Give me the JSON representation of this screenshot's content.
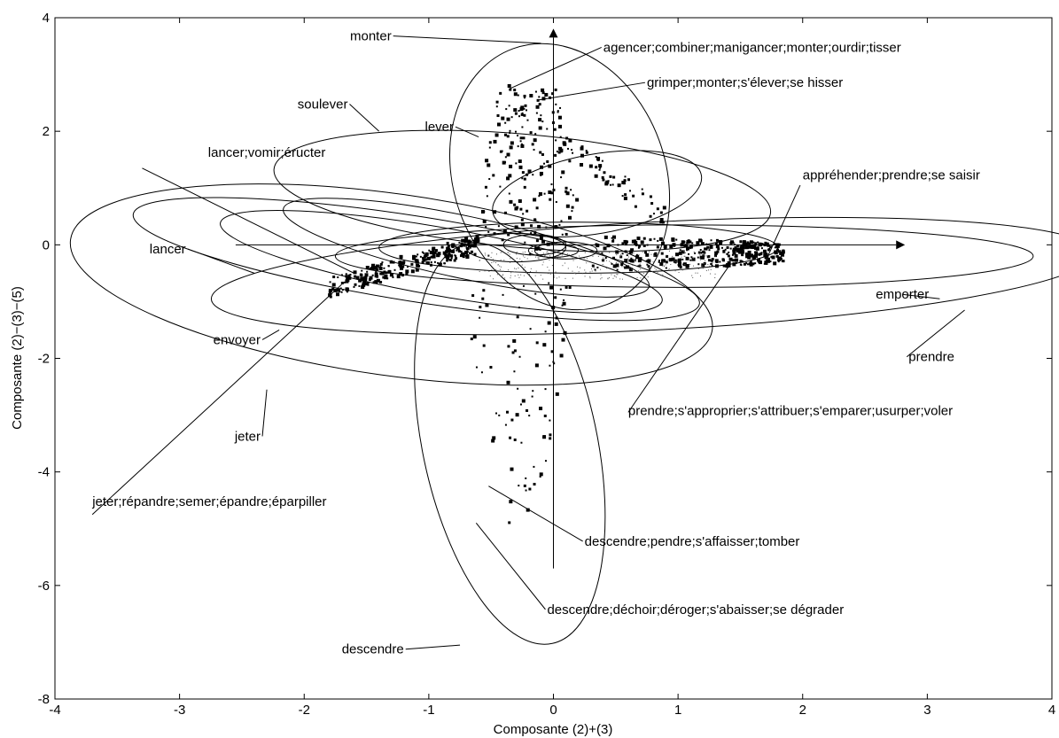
{
  "chart_data": {
    "type": "scatter",
    "xlabel": "Composante (2)+(3)",
    "ylabel": "Composante (2)−(3)−(5)",
    "xlim": [
      -4,
      4
    ],
    "ylim": [
      -8,
      4
    ],
    "grid": false,
    "xticks": [
      "-4",
      "-3",
      "-2",
      "-1",
      "0",
      "1",
      "2",
      "3",
      "4"
    ],
    "yticks": [
      "-8",
      "-6",
      "-4",
      "-2",
      "0",
      "2",
      "4"
    ],
    "axes_arrows": {
      "horizontal": {
        "from": [
          -2.55,
          0
        ],
        "to": [
          2.75,
          0
        ]
      },
      "vertical": {
        "from": [
          0,
          -5.7
        ],
        "to": [
          0,
          3.65
        ]
      }
    },
    "ellipses": [
      {
        "label": "monter",
        "cx": 0.05,
        "cy": 1.2,
        "rx": 0.85,
        "ry": 2.4,
        "angle_deg": -20
      },
      {
        "label": "soulever",
        "cx": -0.25,
        "cy": 0.95,
        "rx": 2.0,
        "ry": 1.0,
        "angle_deg": 5
      },
      {
        "label": "lever",
        "cx": 0.35,
        "cy": 0.9,
        "rx": 0.85,
        "ry": 0.7,
        "angle_deg": -10
      },
      {
        "label": "lancer;vomir;éructer",
        "cx": -0.7,
        "cy": -0.05,
        "rx": 1.5,
        "ry": 0.55,
        "angle_deg": 12
      },
      {
        "label": "lancer",
        "cx": -0.9,
        "cy": -0.3,
        "rx": 1.8,
        "ry": 0.6,
        "angle_deg": 10
      },
      {
        "label": "envoyer",
        "cx": -1.1,
        "cy": -0.25,
        "rx": 2.3,
        "ry": 0.75,
        "angle_deg": 9
      },
      {
        "label": "jeter",
        "cx": -1.3,
        "cy": -0.7,
        "rx": 2.6,
        "ry": 1.6,
        "angle_deg": 8
      },
      {
        "label": "prendre",
        "cx": 0.8,
        "cy": -0.55,
        "rx": 3.55,
        "ry": 0.95,
        "angle_deg": -3
      },
      {
        "label": "emporter",
        "cx": 1.05,
        "cy": -0.2,
        "rx": 2.8,
        "ry": 0.55,
        "angle_deg": 0
      },
      {
        "label": "appréhender;prendre;se saisir",
        "cx": 0.2,
        "cy": -0.05,
        "rx": 1.6,
        "ry": 0.45,
        "angle_deg": 0
      },
      {
        "label": "descendre",
        "cx": -0.35,
        "cy": -3.5,
        "rx": 0.7,
        "ry": 3.6,
        "angle_deg": -12
      },
      {
        "label": "descendre;pendre;s'affaisser;tomber",
        "cx": -0.3,
        "cy": -0.05,
        "rx": 0.4,
        "ry": 0.25,
        "angle_deg": 0
      },
      {
        "label": "grimper;monter;s'élever;se hisser",
        "cx": -0.15,
        "cy": 0.0,
        "rx": 0.25,
        "ry": 0.18,
        "angle_deg": 0
      },
      {
        "label": "agencer;combiner;manigancer;monter;ourdir;tisser",
        "cx": 0.0,
        "cy": -0.1,
        "rx": 0.2,
        "ry": 0.12,
        "angle_deg": 0
      },
      {
        "label": "prendre;s'approprier;s'attribuer;s'emparer;usurper;voler",
        "cx": 0.1,
        "cy": -0.1,
        "rx": 0.25,
        "ry": 0.15,
        "angle_deg": 0
      }
    ],
    "points_clusters": [
      {
        "name": "left-arm",
        "x_range": [
          -1.8,
          -0.6
        ],
        "y_range": [
          -0.75,
          0.15
        ],
        "count": 260,
        "trend": "rising"
      },
      {
        "name": "upper-arm",
        "x_range": [
          -0.6,
          0.2
        ],
        "y_range": [
          -0.2,
          2.8
        ],
        "count": 200,
        "trend": "vertical"
      },
      {
        "name": "right-arm",
        "x_range": [
          0.3,
          1.85
        ],
        "y_range": [
          -0.7,
          0.4
        ],
        "count": 360,
        "trend": "flat"
      },
      {
        "name": "lower-arm",
        "x_range": [
          -0.75,
          0.2
        ],
        "y_range": [
          -4.95,
          -0.6
        ],
        "count": 90,
        "trend": "vertical"
      },
      {
        "name": "upper-right-branch",
        "x_range": [
          0.0,
          0.9
        ],
        "y_range": [
          0.5,
          1.9
        ],
        "count": 60,
        "trend": "diagonal"
      }
    ],
    "annotations": [
      {
        "text": "monter",
        "x": -1.3,
        "y": 3.6,
        "anchor": "end",
        "target": [
          -0.1,
          3.55
        ]
      },
      {
        "text": "agencer;combiner;manigancer;monter;ourdir;tisser",
        "x": 0.4,
        "y": 3.4,
        "anchor": "start",
        "target": [
          -0.35,
          2.75
        ]
      },
      {
        "text": "grimper;monter;s'élever;se hisser",
        "x": 0.75,
        "y": 2.78,
        "anchor": "start",
        "target": [
          -0.12,
          2.55
        ]
      },
      {
        "text": "soulever",
        "x": -1.65,
        "y": 2.4,
        "anchor": "end",
        "target": [
          -1.4,
          2.0
        ]
      },
      {
        "text": "lever",
        "x": -0.8,
        "y": 2.0,
        "anchor": "end",
        "target": [
          -0.6,
          1.9
        ]
      },
      {
        "text": "lancer;vomir;éructer",
        "x": -2.3,
        "y": 1.55,
        "anchor": "middle",
        "target": [
          -1.6,
          -0.5
        ],
        "from": [
          -3.3,
          1.35
        ]
      },
      {
        "text": "appréhender;prendre;se saisir",
        "x": 2.0,
        "y": 1.15,
        "anchor": "start",
        "target": [
          1.7,
          -0.3
        ],
        "from": [
          1.98,
          1.05
        ]
      },
      {
        "text": "lancer",
        "x": -2.95,
        "y": -0.15,
        "anchor": "end",
        "target": [
          -2.4,
          -0.5
        ]
      },
      {
        "text": "emporter",
        "x": 2.8,
        "y": -0.95,
        "anchor": "middle",
        "target": [
          3.1,
          -0.95
        ]
      },
      {
        "text": "envoyer",
        "x": -2.35,
        "y": -1.75,
        "anchor": "end",
        "target": [
          -2.2,
          -1.5
        ]
      },
      {
        "text": "prendre",
        "x": 2.85,
        "y": -2.05,
        "anchor": "start",
        "target": [
          3.3,
          -1.15
        ]
      },
      {
        "text": "jeter",
        "x": -2.35,
        "y": -3.45,
        "anchor": "end",
        "target": [
          -2.3,
          -2.55
        ]
      },
      {
        "text": "prendre;s'approprier;s'attribuer;s'emparer;usurper;voler",
        "x": 0.6,
        "y": -3.0,
        "anchor": "start",
        "target": [
          1.4,
          -0.4
        ],
        "from": [
          0.6,
          -2.95
        ]
      },
      {
        "text": "jeter;répandre;semer;épandre;éparpiller",
        "x": -3.7,
        "y": -4.6,
        "anchor": "start",
        "target": [
          -1.7,
          -0.7
        ],
        "from": [
          -3.7,
          -4.75
        ]
      },
      {
        "text": "descendre;pendre;s'affaisser;tomber",
        "x": 0.25,
        "y": -5.3,
        "anchor": "start",
        "target": [
          -0.52,
          -4.25
        ]
      },
      {
        "text": "descendre;déchoir;déroger;s'abaisser;se dégrader",
        "x": -0.05,
        "y": -6.5,
        "anchor": "start",
        "target": [
          -0.62,
          -4.9
        ]
      },
      {
        "text": "descendre",
        "x": -1.2,
        "y": -7.2,
        "anchor": "end",
        "target": [
          -0.75,
          -7.05
        ]
      }
    ]
  }
}
